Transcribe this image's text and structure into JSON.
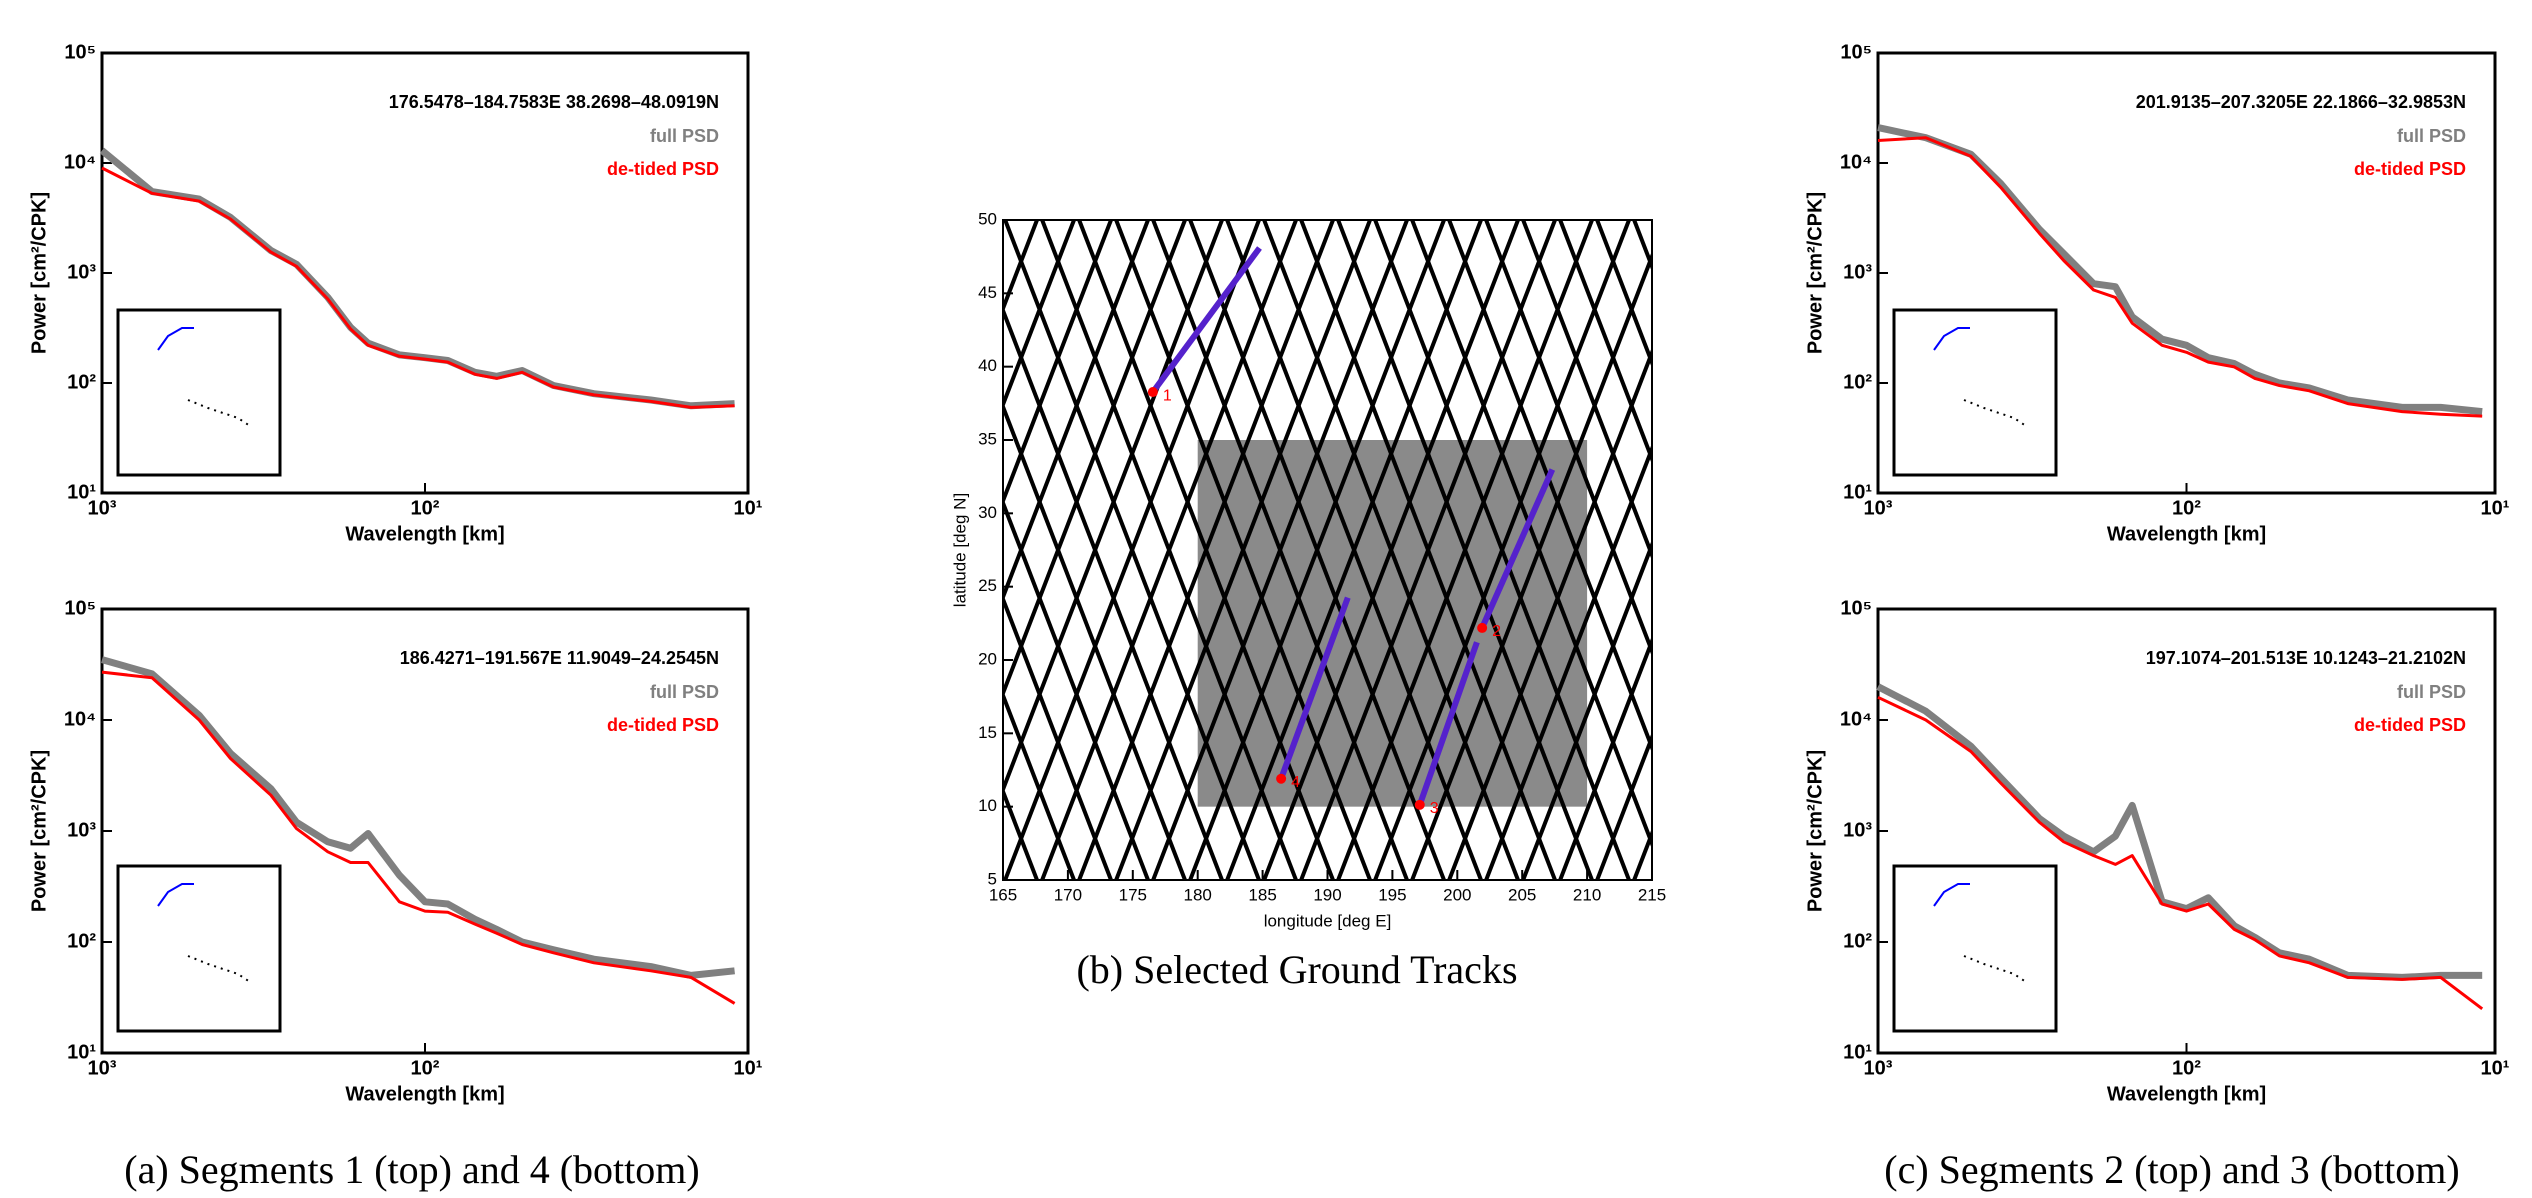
{
  "chart_data": [
    {
      "type": "line",
      "title": "176.5478–184.7583E 38.2698–48.0919N",
      "xlabel": "Wavelength [km]",
      "ylabel": "Power [cm²/CPK]",
      "log_x": true,
      "log_y": true,
      "xlim": [
        1000,
        10
      ],
      "ylim": [
        10,
        100000
      ],
      "xticks": [
        {
          "value": 1000,
          "label": "10³"
        },
        {
          "value": 100,
          "label": "10²"
        },
        {
          "value": 10,
          "label": "10¹"
        }
      ],
      "yticks": [
        {
          "value": 10,
          "label": "10¹"
        },
        {
          "value": 100,
          "label": "10²"
        },
        {
          "value": 1000,
          "label": "10³"
        },
        {
          "value": 10000,
          "label": "10⁴"
        },
        {
          "value": 100000,
          "label": "10⁵"
        }
      ],
      "x": [
        1000,
        700,
        500,
        400,
        300,
        250,
        200,
        170,
        150,
        120,
        100,
        85,
        70,
        60,
        50,
        40,
        30,
        20,
        15,
        11
      ],
      "series": [
        {
          "name": "full PSD",
          "color": "#808080",
          "values": [
            13000,
            5500,
            4700,
            3200,
            1600,
            1200,
            600,
            320,
            230,
            180,
            170,
            160,
            125,
            115,
            130,
            95,
            80,
            70,
            62,
            65
          ]
        },
        {
          "name": "de-tided PSD",
          "color": "#ff0000",
          "values": [
            9000,
            5300,
            4500,
            3100,
            1550,
            1150,
            580,
            310,
            220,
            175,
            165,
            155,
            120,
            110,
            125,
            92,
            78,
            68,
            60,
            62
          ]
        }
      ]
    },
    {
      "type": "line",
      "title": "186.4271–191.567E 11.9049–24.2545N",
      "xlabel": "Wavelength [km]",
      "ylabel": "Power [cm²/CPK]",
      "log_x": true,
      "log_y": true,
      "xlim": [
        1000,
        10
      ],
      "ylim": [
        10,
        100000
      ],
      "xticks": [
        {
          "value": 1000,
          "label": "10³"
        },
        {
          "value": 100,
          "label": "10²"
        },
        {
          "value": 10,
          "label": "10¹"
        }
      ],
      "yticks": [
        {
          "value": 10,
          "label": "10¹"
        },
        {
          "value": 100,
          "label": "10²"
        },
        {
          "value": 1000,
          "label": "10³"
        },
        {
          "value": 10000,
          "label": "10⁴"
        },
        {
          "value": 100000,
          "label": "10⁵"
        }
      ],
      "x": [
        1000,
        700,
        500,
        400,
        300,
        250,
        200,
        170,
        150,
        120,
        100,
        85,
        70,
        60,
        50,
        40,
        30,
        20,
        15,
        11
      ],
      "series": [
        {
          "name": "full PSD",
          "color": "#808080",
          "values": [
            35000,
            26000,
            11000,
            5000,
            2400,
            1200,
            800,
            700,
            950,
            400,
            230,
            220,
            160,
            130,
            100,
            85,
            70,
            60,
            50,
            55
          ]
        },
        {
          "name": "de-tided PSD",
          "color": "#ff0000",
          "values": [
            27000,
            24000,
            10000,
            4500,
            2100,
            1050,
            650,
            520,
            520,
            230,
            190,
            185,
            145,
            120,
            95,
            80,
            65,
            55,
            48,
            28
          ]
        }
      ]
    },
    {
      "type": "tracks",
      "xlabel": "longitude [deg E]",
      "ylabel": "latitude [deg N]",
      "xlim": [
        165,
        215
      ],
      "ylim": [
        5,
        50
      ],
      "xticks": [
        165,
        170,
        175,
        180,
        185,
        190,
        195,
        200,
        205,
        210,
        215
      ],
      "yticks": [
        5,
        10,
        15,
        20,
        25,
        30,
        35,
        40,
        45,
        50
      ],
      "region": {
        "x": [
          180,
          210
        ],
        "y": [
          10,
          35
        ]
      },
      "series": [
        {
          "name": "1",
          "color": "#5522cc",
          "x": [
            176.5478,
            184.7583
          ],
          "y": [
            38.2698,
            48.0919
          ]
        },
        {
          "name": "2",
          "color": "#5522cc",
          "x": [
            201.9135,
            207.3205
          ],
          "y": [
            22.1866,
            32.9853
          ]
        },
        {
          "name": "3",
          "color": "#5522cc",
          "x": [
            197.1074,
            201.513
          ],
          "y": [
            10.1243,
            21.2102
          ]
        },
        {
          "name": "4",
          "color": "#5522cc",
          "x": [
            186.4271,
            191.567
          ],
          "y": [
            11.9049,
            24.2545
          ]
        }
      ]
    },
    {
      "type": "line",
      "title": "201.9135–207.3205E 22.1866–32.9853N",
      "xlabel": "Wavelength [km]",
      "ylabel": "Power [cm²/CPK]",
      "log_x": true,
      "log_y": true,
      "xlim": [
        1000,
        10
      ],
      "ylim": [
        10,
        100000
      ],
      "xticks": [
        {
          "value": 1000,
          "label": "10³"
        },
        {
          "value": 100,
          "label": "10²"
        },
        {
          "value": 10,
          "label": "10¹"
        }
      ],
      "yticks": [
        {
          "value": 10,
          "label": "10¹"
        },
        {
          "value": 100,
          "label": "10²"
        },
        {
          "value": 1000,
          "label": "10³"
        },
        {
          "value": 10000,
          "label": "10⁴"
        },
        {
          "value": 100000,
          "label": "10⁵"
        }
      ],
      "x": [
        1000,
        700,
        500,
        400,
        300,
        250,
        200,
        170,
        150,
        120,
        100,
        85,
        70,
        60,
        50,
        40,
        30,
        20,
        15,
        11
      ],
      "series": [
        {
          "name": "full PSD",
          "color": "#808080",
          "values": [
            21000,
            17000,
            12000,
            6500,
            2500,
            1500,
            800,
            750,
            400,
            250,
            220,
            170,
            150,
            120,
            100,
            90,
            70,
            60,
            60,
            55
          ]
        },
        {
          "name": "de-tided PSD",
          "color": "#ff0000",
          "values": [
            16000,
            17000,
            11500,
            6000,
            2300,
            1300,
            700,
            600,
            350,
            220,
            190,
            155,
            140,
            110,
            95,
            85,
            65,
            55,
            52,
            50
          ]
        }
      ]
    },
    {
      "type": "line",
      "title": "197.1074–201.513E 10.1243–21.2102N",
      "xlabel": "Wavelength [km]",
      "ylabel": "Power [cm²/CPK]",
      "log_x": true,
      "log_y": true,
      "xlim": [
        1000,
        10
      ],
      "ylim": [
        10,
        100000
      ],
      "xticks": [
        {
          "value": 1000,
          "label": "10³"
        },
        {
          "value": 100,
          "label": "10²"
        },
        {
          "value": 10,
          "label": "10¹"
        }
      ],
      "yticks": [
        {
          "value": 10,
          "label": "10¹"
        },
        {
          "value": 100,
          "label": "10²"
        },
        {
          "value": 1000,
          "label": "10³"
        },
        {
          "value": 10000,
          "label": "10⁴"
        },
        {
          "value": 100000,
          "label": "10⁵"
        }
      ],
      "x": [
        1000,
        700,
        500,
        400,
        300,
        250,
        200,
        170,
        150,
        120,
        100,
        85,
        70,
        60,
        50,
        40,
        30,
        20,
        15,
        11
      ],
      "series": [
        {
          "name": "full PSD",
          "color": "#808080",
          "values": [
            20000,
            12000,
            5800,
            3000,
            1300,
            900,
            650,
            900,
            1700,
            230,
            200,
            250,
            140,
            110,
            80,
            70,
            50,
            48,
            50,
            50
          ]
        },
        {
          "name": "de-tided PSD",
          "color": "#ff0000",
          "values": [
            16000,
            10000,
            5200,
            2700,
            1200,
            800,
            600,
            500,
            600,
            220,
            190,
            220,
            130,
            105,
            75,
            65,
            48,
            46,
            48,
            25
          ]
        }
      ]
    }
  ],
  "captions": [
    "(a) Segments 1 (top) and 4 (bottom)",
    "(b) Selected Ground Tracks",
    "(c) Segments 2 (top) and 3 (bottom)"
  ]
}
